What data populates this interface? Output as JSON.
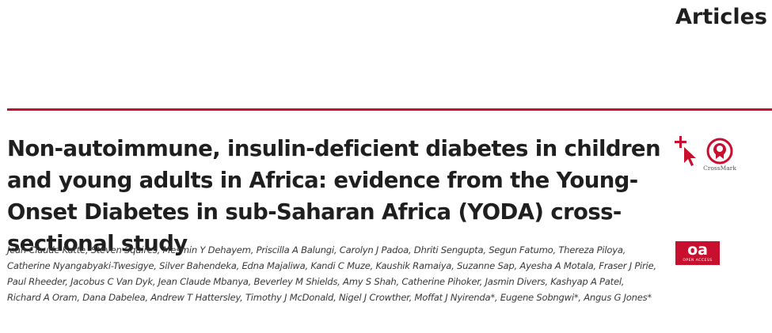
{
  "header": {
    "section_label": "Articles"
  },
  "article": {
    "title": "Non-autoimmune, insulin-deficient diabetes in children and young adults in Africa: evidence from the Young-Onset Diabetes in sub-Saharan Africa (YODA) cross-sectional study",
    "authors": "Jean Claude Katte, Steven Squires, Mesmin Y Dehayem, Priscilla A Balungi, Carolyn J Padoa, Dhriti Sengupta, Segun Fatumo, Thereza Piloya, Catherine Nyangabyaki-Twesigye, Silver Bahendeka, Edna Majaliwa, Kandi C Muze, Kaushik Ramaiya, Suzanne Sap, Ayesha A Motala, Fraser J Pirie, Paul Rheeder, Jacobus C Van Dyk, Jean Claude Mbanya, Beverley M Shields, Amy S Shah, Catherine Pihoker, Jasmin Divers, Kashyap A Patel, Richard A Oram, Dana Dabelea, Andrew T Hattersley, Timothy J McDonald, Nigel J Crowther, Moffat J Nyirenda*, Eugene Sobngwi*, Angus G Jones*"
  },
  "badges": {
    "crossmark_label": "CrossMark",
    "crossmark_icon": "crossmark-icon",
    "oa_mark": "oa",
    "oa_text": "OPEN ACCESS",
    "accent_color": "#c8102e"
  }
}
